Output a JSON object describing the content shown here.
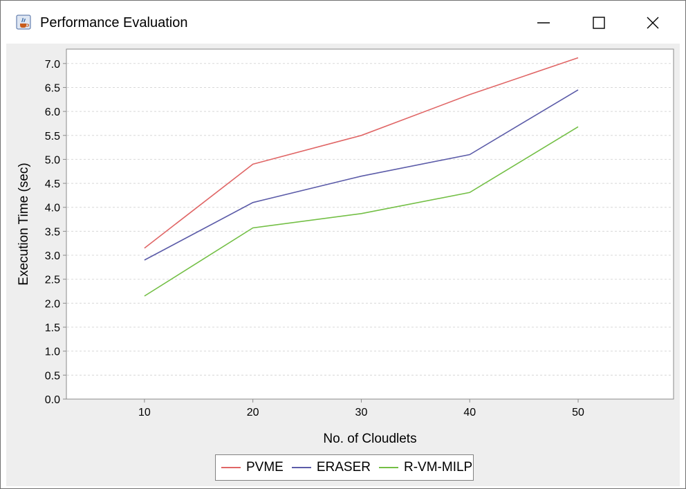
{
  "window": {
    "title": "Performance Evaluation",
    "icons": {
      "app": "java-cup-icon",
      "minimize": "minimize-icon",
      "maximize": "maximize-icon",
      "close": "close-icon"
    }
  },
  "chart_data": {
    "type": "line",
    "title": "",
    "xlabel": "No. of Cloudlets",
    "ylabel": "Execution Time (sec)",
    "x": [
      10,
      20,
      30,
      40,
      50
    ],
    "x_tick_labels": [
      "10",
      "20",
      "30",
      "40",
      "50"
    ],
    "y_tick_labels": [
      "0.0",
      "0.5",
      "1.0",
      "1.5",
      "2.0",
      "2.5",
      "3.0",
      "3.5",
      "4.0",
      "4.5",
      "5.0",
      "5.5",
      "6.0",
      "6.5",
      "7.0"
    ],
    "ylim": [
      0,
      7.3
    ],
    "grid": true,
    "legend_position": "bottom",
    "series": [
      {
        "name": "PVME",
        "color": "#e06666",
        "values": [
          3.15,
          4.9,
          5.5,
          6.35,
          7.12
        ]
      },
      {
        "name": "ERASER",
        "color": "#5b5ba8",
        "values": [
          2.9,
          4.1,
          4.65,
          5.1,
          6.45
        ]
      },
      {
        "name": "R-VM-MILP",
        "color": "#73bf45",
        "values": [
          2.15,
          3.57,
          3.87,
          4.31,
          5.68
        ]
      }
    ]
  }
}
